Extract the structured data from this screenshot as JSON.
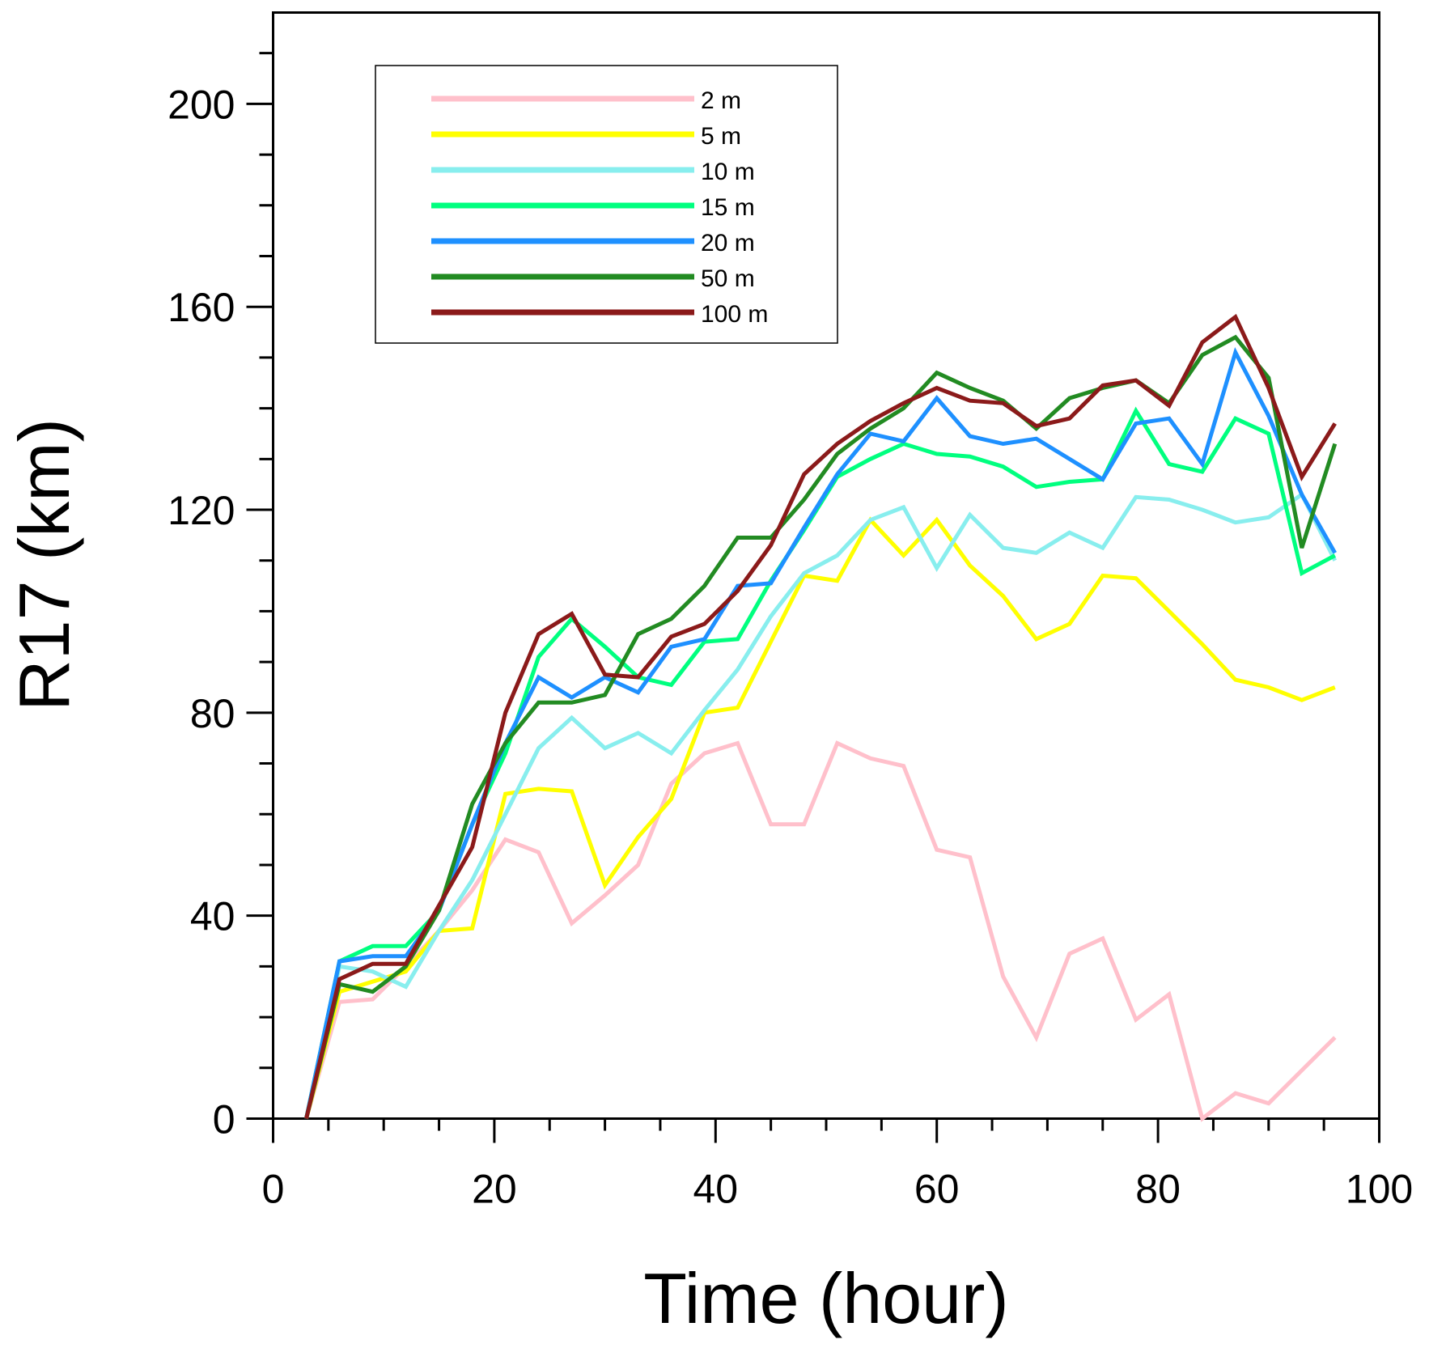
{
  "chart_data": {
    "type": "line",
    "title": "",
    "xlabel": "Time (hour)",
    "ylabel": "R17 (km)",
    "xlim": [
      0,
      100
    ],
    "ylim": [
      0,
      218
    ],
    "xticks": [
      0,
      20,
      40,
      60,
      80,
      100
    ],
    "yticks": [
      0,
      40,
      80,
      120,
      160,
      200
    ],
    "legend_position": "top-left",
    "x": [
      3,
      6,
      9,
      12,
      15,
      18,
      21,
      24,
      27,
      30,
      33,
      36,
      39,
      42,
      45,
      48,
      51,
      54,
      57,
      60,
      63,
      66,
      69,
      72,
      75,
      78,
      81,
      84,
      87,
      90,
      93,
      96
    ],
    "series": [
      {
        "name": "2 m",
        "color": "#ffc0cb",
        "width": 5,
        "values": [
          0,
          23,
          23.5,
          30,
          37,
          45,
          55,
          52.5,
          38.5,
          44,
          50,
          66,
          72,
          74,
          58,
          58,
          74,
          71,
          69.5,
          53,
          51.5,
          28,
          16,
          32.5,
          35.5,
          19.5,
          24.5,
          0,
          5,
          3,
          9.5,
          16
        ]
      },
      {
        "name": "5 m",
        "color": "#ffff00",
        "width": 5,
        "values": [
          0,
          25,
          27,
          29,
          37,
          37.5,
          64,
          65,
          64.5,
          46,
          55.5,
          63,
          80,
          81,
          94,
          107,
          106,
          118,
          111,
          118,
          109,
          103,
          94.5,
          97.5,
          107,
          106.5,
          100,
          93.5,
          86.5,
          85,
          82.5,
          85
        ]
      },
      {
        "name": "10 m",
        "color": "#88eeee",
        "width": 5,
        "values": [
          0,
          30,
          29,
          26,
          37,
          47,
          60,
          73,
          79,
          73,
          76,
          72,
          80.5,
          88.5,
          99,
          107.5,
          111,
          118,
          120.5,
          108.5,
          119,
          112.5,
          111.5,
          115.5,
          112.5,
          122.5,
          122,
          120,
          117.5,
          118.5,
          123,
          110
        ]
      },
      {
        "name": "15 m",
        "color": "#00ff7f",
        "width": 5,
        "values": [
          0,
          31,
          34,
          34,
          41,
          58,
          72,
          91,
          98.5,
          93,
          87,
          85.5,
          94,
          94.5,
          106,
          116,
          126.5,
          130,
          133,
          131,
          130.5,
          128.5,
          124.5,
          125.5,
          126,
          139.5,
          129,
          127.5,
          138,
          135,
          107.5,
          111
        ]
      },
      {
        "name": "20 m",
        "color": "#1e90ff",
        "width": 5,
        "values": [
          0,
          31,
          32,
          32,
          41,
          58,
          74,
          87,
          83,
          87,
          84,
          93,
          94.5,
          105,
          105.5,
          116.5,
          127,
          135,
          133.5,
          142,
          134.5,
          133,
          134,
          130,
          126,
          137,
          138,
          129,
          151,
          138.5,
          123,
          111.5
        ]
      },
      {
        "name": "50 m",
        "color": "#228b22",
        "width": 5,
        "values": [
          0,
          26.5,
          25,
          30,
          41,
          62,
          74,
          82,
          82,
          83.5,
          95.5,
          98.5,
          105,
          114.5,
          114.5,
          122,
          131,
          136,
          140,
          147,
          144,
          141.5,
          136,
          142,
          144,
          145.5,
          141,
          150.5,
          154,
          146,
          112.5,
          133
        ]
      },
      {
        "name": "100 m",
        "color": "#8b1a1a",
        "width": 5,
        "values": [
          0,
          27.5,
          30.5,
          30.5,
          42,
          53.5,
          80,
          95.5,
          99.5,
          87.5,
          87,
          95,
          97.5,
          104,
          113,
          127,
          133,
          137.5,
          141,
          144,
          141.5,
          141,
          136.5,
          138,
          144.5,
          145.5,
          140.5,
          153,
          158,
          144,
          126.5,
          137
        ]
      }
    ]
  }
}
